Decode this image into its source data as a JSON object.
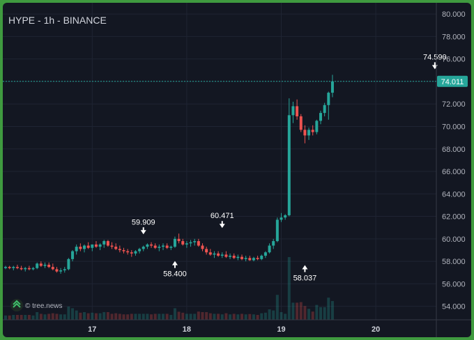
{
  "title": "HYPE - 1h - BINANCE",
  "brand": "© tree.news",
  "colors": {
    "up": "#26a69a",
    "down": "#ef5350",
    "grid": "#1f2433",
    "last_price_line": "#26a69a",
    "background": "#131722"
  },
  "chart_data": {
    "type": "candlestick",
    "title": "HYPE - 1h - BINANCE",
    "xlabel": "",
    "ylabel": "",
    "ylim": [
      52.8,
      81.0
    ],
    "y_ticks": [
      "54.000",
      "56.000",
      "58.000",
      "60.000",
      "62.000",
      "64.000",
      "66.000",
      "68.000",
      "70.000",
      "72.000",
      "74.000",
      "76.000",
      "78.000",
      "80.000"
    ],
    "x_ticks": [
      {
        "label": "17",
        "index": 22
      },
      {
        "label": "18",
        "index": 46
      },
      {
        "label": "19",
        "index": 70
      },
      {
        "label": "20",
        "index": 94
      }
    ],
    "last_price": "74.011",
    "last_price_value": 74.011,
    "grid": true,
    "annotations": [
      {
        "label": "59.909",
        "index": 35,
        "value": 59.909,
        "position": "above"
      },
      {
        "label": "58.400",
        "index": 43,
        "value": 58.4,
        "position": "below"
      },
      {
        "label": "60.471",
        "index": 55,
        "value": 60.471,
        "position": "above"
      },
      {
        "label": "58.037",
        "index": 76,
        "value": 58.037,
        "position": "below"
      },
      {
        "label": "74.590",
        "index": 109,
        "value": 74.59,
        "position": "above"
      }
    ],
    "ohlc": [
      [
        57.4,
        57.6,
        57.3,
        57.5
      ],
      [
        57.5,
        57.6,
        57.3,
        57.4
      ],
      [
        57.4,
        57.6,
        57.2,
        57.5
      ],
      [
        57.5,
        57.7,
        57.3,
        57.4
      ],
      [
        57.4,
        57.6,
        57.2,
        57.3
      ],
      [
        57.3,
        57.5,
        57.1,
        57.4
      ],
      [
        57.4,
        57.6,
        57.2,
        57.3
      ],
      [
        57.3,
        57.5,
        57.2,
        57.4
      ],
      [
        57.4,
        57.9,
        57.3,
        57.8
      ],
      [
        57.8,
        58.0,
        57.5,
        57.6
      ],
      [
        57.6,
        57.9,
        57.4,
        57.7
      ],
      [
        57.7,
        57.9,
        57.4,
        57.5
      ],
      [
        57.5,
        57.8,
        57.2,
        57.3
      ],
      [
        57.3,
        57.5,
        57.0,
        57.1
      ],
      [
        57.1,
        57.4,
        56.9,
        57.2
      ],
      [
        57.2,
        57.5,
        57.0,
        57.3
      ],
      [
        57.3,
        58.3,
        57.2,
        58.2
      ],
      [
        58.2,
        59.0,
        58.0,
        58.9
      ],
      [
        58.9,
        59.5,
        58.6,
        59.3
      ],
      [
        59.3,
        59.6,
        58.9,
        59.1
      ],
      [
        59.1,
        59.5,
        58.8,
        59.4
      ],
      [
        59.4,
        59.7,
        59.1,
        59.2
      ],
      [
        59.2,
        59.5,
        58.9,
        59.5
      ],
      [
        59.5,
        59.8,
        59.2,
        59.3
      ],
      [
        59.3,
        59.6,
        59.0,
        59.5
      ],
      [
        59.5,
        59.91,
        59.2,
        59.8
      ],
      [
        59.8,
        59.9,
        59.3,
        59.4
      ],
      [
        59.4,
        59.7,
        59.1,
        59.3
      ],
      [
        59.3,
        59.6,
        59.0,
        59.1
      ],
      [
        59.1,
        59.4,
        58.8,
        59.0
      ],
      [
        59.0,
        59.2,
        58.7,
        58.9
      ],
      [
        58.9,
        59.1,
        58.6,
        58.8
      ],
      [
        58.8,
        59.0,
        58.4,
        58.7
      ],
      [
        58.7,
        59.0,
        58.5,
        58.9
      ],
      [
        58.9,
        59.2,
        58.7,
        59.1
      ],
      [
        59.1,
        59.4,
        58.9,
        59.3
      ],
      [
        59.3,
        59.6,
        59.1,
        59.5
      ],
      [
        59.5,
        59.7,
        59.2,
        59.4
      ],
      [
        59.4,
        59.6,
        59.1,
        59.2
      ],
      [
        59.2,
        59.5,
        58.9,
        59.3
      ],
      [
        59.3,
        59.6,
        59.0,
        59.4
      ],
      [
        59.4,
        59.6,
        59.1,
        59.2
      ],
      [
        59.2,
        59.4,
        59.0,
        59.3
      ],
      [
        59.3,
        60.2,
        59.2,
        60.0
      ],
      [
        60.0,
        60.47,
        59.6,
        59.8
      ],
      [
        59.8,
        60.0,
        59.4,
        59.5
      ],
      [
        59.5,
        59.8,
        59.2,
        59.6
      ],
      [
        59.6,
        59.9,
        59.3,
        59.7
      ],
      [
        59.7,
        60.0,
        59.4,
        59.8
      ],
      [
        59.8,
        60.0,
        59.3,
        59.4
      ],
      [
        59.4,
        59.6,
        58.9,
        59.1
      ],
      [
        59.1,
        59.3,
        58.6,
        58.8
      ],
      [
        58.8,
        59.1,
        58.5,
        58.6
      ],
      [
        58.6,
        58.9,
        58.3,
        58.7
      ],
      [
        58.7,
        58.9,
        58.4,
        58.5
      ],
      [
        58.5,
        58.8,
        58.3,
        58.6
      ],
      [
        58.6,
        58.9,
        58.3,
        58.4
      ],
      [
        58.4,
        58.7,
        58.2,
        58.5
      ],
      [
        58.5,
        58.7,
        58.2,
        58.3
      ],
      [
        58.3,
        58.6,
        58.1,
        58.4
      ],
      [
        58.4,
        58.6,
        58.1,
        58.2
      ],
      [
        58.2,
        58.5,
        58.0,
        58.3
      ],
      [
        58.3,
        58.5,
        58.04,
        58.1
      ],
      [
        58.1,
        58.4,
        58.0,
        58.3
      ],
      [
        58.3,
        58.5,
        58.1,
        58.2
      ],
      [
        58.2,
        58.6,
        58.1,
        58.5
      ],
      [
        58.5,
        58.9,
        58.3,
        58.8
      ],
      [
        58.8,
        59.6,
        58.7,
        59.4
      ],
      [
        59.4,
        60.0,
        59.1,
        59.8
      ],
      [
        59.8,
        61.9,
        59.7,
        61.7
      ],
      [
        61.7,
        62.3,
        61.5,
        61.9
      ],
      [
        61.9,
        62.2,
        61.7,
        62.1
      ],
      [
        62.1,
        72.5,
        62.0,
        71.0
      ],
      [
        71.0,
        72.2,
        70.3,
        71.8
      ],
      [
        71.8,
        72.4,
        70.6,
        70.9
      ],
      [
        70.9,
        71.1,
        69.5,
        69.7
      ],
      [
        69.7,
        70.1,
        68.5,
        69.2
      ],
      [
        69.2,
        69.9,
        68.8,
        69.7
      ],
      [
        69.7,
        70.1,
        69.2,
        69.5
      ],
      [
        69.5,
        70.6,
        69.3,
        70.5
      ],
      [
        70.5,
        71.4,
        70.2,
        71.2
      ],
      [
        71.2,
        72.1,
        70.9,
        71.9
      ],
      [
        71.9,
        73.1,
        70.6,
        73.0
      ],
      [
        73.0,
        74.59,
        72.6,
        74.0
      ]
    ]
  }
}
